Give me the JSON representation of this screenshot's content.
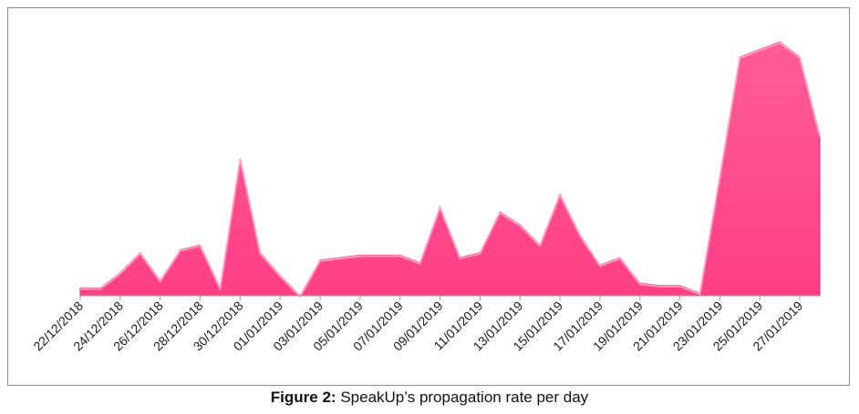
{
  "chart_data": {
    "type": "area",
    "title": "",
    "xlabel": "",
    "ylabel": "",
    "grid": false,
    "legend": "none",
    "color": "#ff4f8f",
    "x": [
      "22/12/2018",
      "23/12/2018",
      "24/12/2018",
      "25/12/2018",
      "26/12/2018",
      "27/12/2018",
      "28/12/2018",
      "29/12/2018",
      "30/12/2018",
      "31/12/2018",
      "01/01/2019",
      "02/01/2019",
      "03/01/2019",
      "04/01/2019",
      "05/01/2019",
      "06/01/2019",
      "07/01/2019",
      "08/01/2019",
      "09/01/2019",
      "10/01/2019",
      "11/01/2019",
      "12/01/2019",
      "13/01/2019",
      "14/01/2019",
      "15/01/2019",
      "16/01/2019",
      "17/01/2019",
      "18/01/2019",
      "19/01/2019",
      "20/01/2019",
      "21/01/2019",
      "22/01/2019",
      "23/01/2019",
      "24/01/2019",
      "25/01/2019",
      "26/01/2019",
      "27/01/2019",
      "28/01/2019"
    ],
    "tick_labels": [
      "22/12/2018",
      "24/12/2018",
      "26/12/2018",
      "28/12/2018",
      "30/12/2018",
      "01/01/2019",
      "03/01/2019",
      "05/01/2019",
      "07/01/2019",
      "09/01/2019",
      "11/01/2019",
      "13/01/2019",
      "15/01/2019",
      "17/01/2019",
      "19/01/2019",
      "21/01/2019",
      "23/01/2019",
      "25/01/2019",
      "27/01/2019"
    ],
    "values": [
      3,
      3,
      9,
      17,
      6,
      18,
      20,
      3,
      54,
      17,
      8,
      0,
      14,
      15,
      16,
      16,
      16,
      13,
      35,
      15,
      17,
      33,
      28,
      20,
      40,
      24,
      12,
      15,
      5,
      4,
      4,
      1,
      47,
      94,
      97,
      100,
      94,
      63
    ],
    "ylim": [
      0,
      100
    ]
  },
  "caption": {
    "bold": "Figure 2:",
    "text": " SpeakUp’s propagation rate per day"
  }
}
